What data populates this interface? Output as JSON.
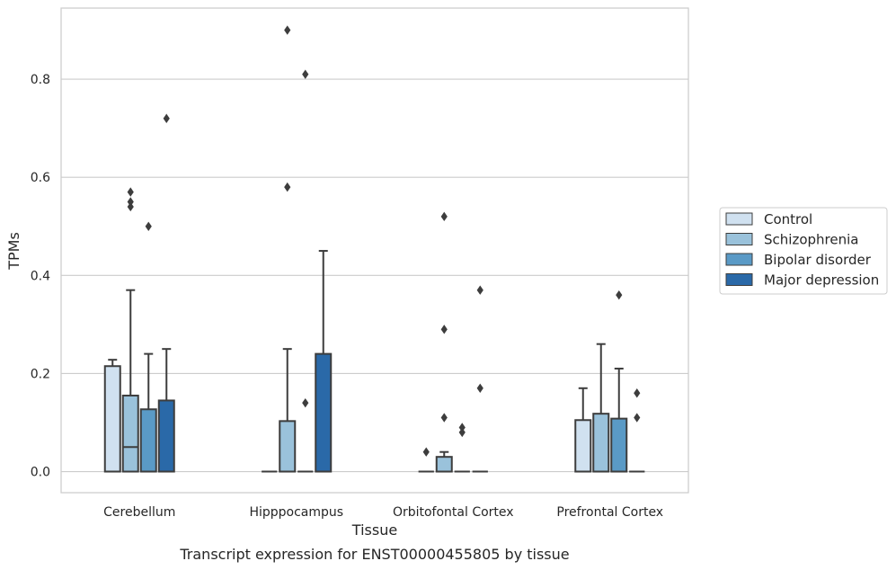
{
  "chart_data": {
    "type": "box",
    "caption": "Transcript expression for ENST00000455805 by tissue",
    "xlabel": "Tissue",
    "ylabel": "TPMs",
    "ylim": [
      -0.043,
      0.945
    ],
    "yticks": [
      0.0,
      0.2,
      0.4,
      0.6,
      0.8
    ],
    "ytick_labels": [
      "0.0",
      "0.2",
      "0.4",
      "0.6",
      "0.8"
    ],
    "grid": true,
    "legend_position": "right",
    "categories": [
      "Cerebellum",
      "Hipppocampus",
      "Orbitofontal Cortex",
      "Prefrontal Cortex"
    ],
    "series": [
      {
        "name": "Control",
        "color": "#d0e1f0",
        "boxes": [
          {
            "q1": 0.0,
            "median": 0.0,
            "q3": 0.215,
            "whisker_low": 0.0,
            "whisker_high": 0.228,
            "outliers": []
          },
          {
            "q1": 0.0,
            "median": 0.0,
            "q3": 0.0,
            "whisker_low": 0.0,
            "whisker_high": 0.0,
            "outliers": []
          },
          {
            "q1": 0.0,
            "median": 0.0,
            "q3": 0.0,
            "whisker_low": 0.0,
            "whisker_high": 0.0,
            "outliers": [
              0.04
            ]
          },
          {
            "q1": 0.0,
            "median": 0.0,
            "q3": 0.105,
            "whisker_low": 0.0,
            "whisker_high": 0.17,
            "outliers": []
          }
        ]
      },
      {
        "name": "Schizophrenia",
        "color": "#9ac2db",
        "boxes": [
          {
            "q1": 0.0,
            "median": 0.05,
            "q3": 0.155,
            "whisker_low": 0.0,
            "whisker_high": 0.37,
            "outliers": [
              0.54,
              0.55,
              0.57
            ]
          },
          {
            "q1": 0.0,
            "median": 0.0,
            "q3": 0.103,
            "whisker_low": 0.0,
            "whisker_high": 0.25,
            "outliers": [
              0.58,
              0.9
            ]
          },
          {
            "q1": 0.0,
            "median": 0.0,
            "q3": 0.03,
            "whisker_low": 0.0,
            "whisker_high": 0.04,
            "outliers": [
              0.11,
              0.29,
              0.52
            ]
          },
          {
            "q1": 0.0,
            "median": 0.0,
            "q3": 0.118,
            "whisker_low": 0.0,
            "whisker_high": 0.26,
            "outliers": []
          }
        ]
      },
      {
        "name": "Bipolar disorder",
        "color": "#5a9ac6",
        "boxes": [
          {
            "q1": 0.0,
            "median": 0.0,
            "q3": 0.127,
            "whisker_low": 0.0,
            "whisker_high": 0.24,
            "outliers": [
              0.5
            ]
          },
          {
            "q1": 0.0,
            "median": 0.0,
            "q3": 0.0,
            "whisker_low": 0.0,
            "whisker_high": 0.0,
            "outliers": [
              0.14,
              0.81
            ]
          },
          {
            "q1": 0.0,
            "median": 0.0,
            "q3": 0.0,
            "whisker_low": 0.0,
            "whisker_high": 0.0,
            "outliers": [
              0.08,
              0.09
            ]
          },
          {
            "q1": 0.0,
            "median": 0.0,
            "q3": 0.108,
            "whisker_low": 0.0,
            "whisker_high": 0.21,
            "outliers": [
              0.36
            ]
          }
        ]
      },
      {
        "name": "Major depression",
        "color": "#2a69a8",
        "boxes": [
          {
            "q1": 0.0,
            "median": 0.0,
            "q3": 0.145,
            "whisker_low": 0.0,
            "whisker_high": 0.25,
            "outliers": [
              0.72
            ]
          },
          {
            "q1": 0.0,
            "median": 0.0,
            "q3": 0.24,
            "whisker_low": 0.0,
            "whisker_high": 0.45,
            "outliers": []
          },
          {
            "q1": 0.0,
            "median": 0.0,
            "q3": 0.0,
            "whisker_low": 0.0,
            "whisker_high": 0.0,
            "outliers": [
              0.17,
              0.37
            ]
          },
          {
            "q1": 0.0,
            "median": 0.0,
            "q3": 0.0,
            "whisker_low": 0.0,
            "whisker_high": 0.0,
            "outliers": [
              0.11,
              0.16
            ]
          }
        ]
      }
    ]
  }
}
